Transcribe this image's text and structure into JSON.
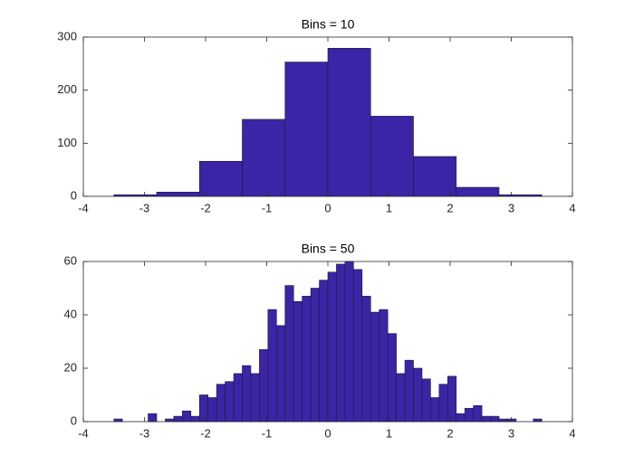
{
  "chart_data": [
    {
      "type": "histogram",
      "title": "Bins = 10",
      "color": "#3b25a6",
      "bins": [
        -3.5,
        -2.8,
        -2.1,
        -1.4,
        -0.7,
        0,
        0.7,
        1.4,
        2.1,
        2.8,
        3.5
      ],
      "values": [
        3,
        8,
        66,
        145,
        253,
        279,
        151,
        75,
        17,
        3
      ],
      "xlim": [
        -4,
        4
      ],
      "xticks": [
        -4,
        -3,
        -2,
        -1,
        0,
        1,
        2,
        3,
        4
      ],
      "ylim": [
        0,
        300
      ],
      "yticks": [
        0,
        100,
        200,
        300
      ]
    },
    {
      "type": "histogram",
      "title": "Bins = 50",
      "color": "#3b25a6",
      "bins": [
        -3.5,
        -3.36,
        -3.22,
        -3.08,
        -2.94,
        -2.8,
        -2.66,
        -2.52,
        -2.38,
        -2.24,
        -2.1,
        -1.96,
        -1.82,
        -1.68,
        -1.54,
        -1.4,
        -1.26,
        -1.12,
        -0.98,
        -0.84,
        -0.7,
        -0.56,
        -0.42,
        -0.28,
        -0.14,
        0,
        0.14,
        0.28,
        0.42,
        0.56,
        0.7,
        0.84,
        0.98,
        1.12,
        1.26,
        1.4,
        1.54,
        1.68,
        1.82,
        1.96,
        2.1,
        2.24,
        2.38,
        2.52,
        2.66,
        2.8,
        2.94,
        3.08,
        3.22,
        3.36,
        3.5
      ],
      "values": [
        1,
        0,
        0,
        0,
        3,
        0,
        1,
        2,
        4,
        2,
        10,
        9,
        14,
        15,
        18,
        21,
        18,
        27,
        42,
        36,
        51,
        45,
        47,
        50,
        53,
        56,
        59,
        60,
        57,
        47,
        41,
        42,
        33,
        18,
        23,
        20,
        16,
        9,
        14,
        17,
        3,
        5,
        6,
        2,
        2,
        1,
        1,
        0,
        0,
        1
      ],
      "xlim": [
        -4,
        4
      ],
      "xticks": [
        -4,
        -3,
        -2,
        -1,
        0,
        1,
        2,
        3,
        4
      ],
      "ylim": [
        0,
        60
      ],
      "yticks": [
        0,
        20,
        40,
        60
      ]
    }
  ]
}
